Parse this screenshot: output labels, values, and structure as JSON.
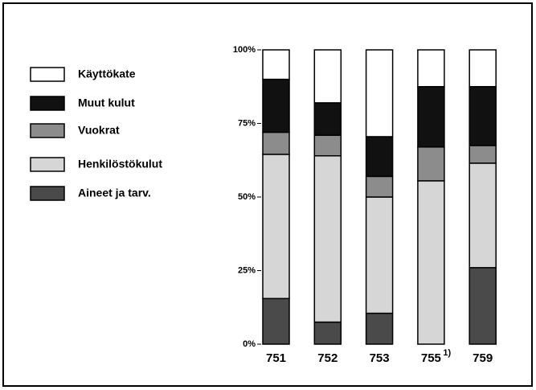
{
  "chart_data": {
    "type": "stacked_bar",
    "categories": [
      "751",
      "752",
      "753",
      "755",
      "759"
    ],
    "category_footnotes": [
      null,
      null,
      null,
      "1)",
      null
    ],
    "series": [
      {
        "name": "Aineet ja tarv.",
        "color": "#4a4a4a",
        "values": [
          15.5,
          7.5,
          10.5,
          0,
          26
        ]
      },
      {
        "name": "Henkilöstökulut",
        "color": "#d6d6d6",
        "values": [
          49,
          56.5,
          39.5,
          55.5,
          35.5
        ]
      },
      {
        "name": "Vuokrat",
        "color": "#8c8c8c",
        "values": [
          7.5,
          7,
          7,
          11.5,
          6
        ]
      },
      {
        "name": "Muut kulut",
        "color": "#111111",
        "values": [
          18,
          11,
          13.5,
          20.5,
          20
        ]
      },
      {
        "name": "Käyttökate",
        "color": "#ffffff",
        "values": [
          10,
          18,
          29.5,
          12.5,
          12.5
        ]
      }
    ],
    "ylim": [
      0,
      100
    ],
    "yticks": [
      {
        "value": 0,
        "label": "0%"
      },
      {
        "value": 25,
        "label": "25%"
      },
      {
        "value": 50,
        "label": "50%"
      },
      {
        "value": 75,
        "label": "75%"
      },
      {
        "value": 100,
        "label": "100%"
      }
    ]
  }
}
